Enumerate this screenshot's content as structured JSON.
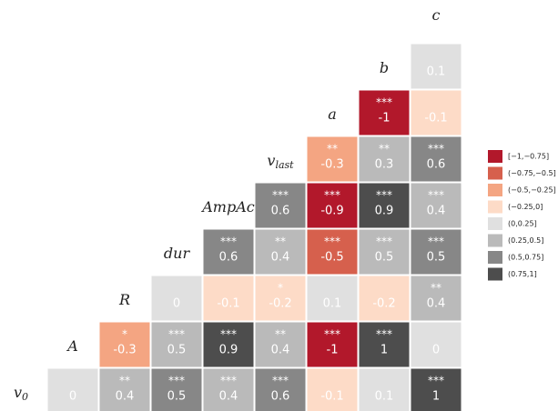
{
  "chart_data": {
    "type": "heatmap",
    "variables": [
      {
        "text": "v",
        "sub": "0"
      },
      {
        "text": "A"
      },
      {
        "text": "R"
      },
      {
        "text": "dur"
      },
      {
        "text": "AmpAc"
      },
      {
        "text": "v",
        "sub": "last"
      },
      {
        "text": "a"
      },
      {
        "text": "b"
      },
      {
        "text": "c"
      }
    ],
    "rows": [
      {
        "values": [
          0,
          0.4,
          0.5,
          0.4,
          0.6,
          -0.1,
          0.1,
          1
        ],
        "stars": [
          null,
          "**",
          "***",
          "***",
          "***",
          null,
          null,
          "***"
        ],
        "colors": [
          "#e0e0e0",
          "#bababa",
          "#878787",
          "#bababa",
          "#878787",
          "#fddbc7",
          "#e0e0e0",
          "#4d4d4d"
        ]
      },
      {
        "values": [
          -0.3,
          0.5,
          0.9,
          0.4,
          -1,
          1,
          0
        ],
        "stars": [
          "*",
          "***",
          "***",
          "**",
          "***",
          "***",
          null
        ],
        "colors": [
          "#f4a582",
          "#bababa",
          "#4d4d4d",
          "#bababa",
          "#b2182b",
          "#4d4d4d",
          "#e0e0e0"
        ]
      },
      {
        "values": [
          0,
          -0.1,
          -0.2,
          0.1,
          -0.2,
          0.4
        ],
        "stars": [
          null,
          null,
          "*",
          null,
          null,
          "**"
        ],
        "colors": [
          "#e0e0e0",
          "#fddbc7",
          "#fddbc7",
          "#e0e0e0",
          "#fddbc7",
          "#bababa"
        ]
      },
      {
        "values": [
          0.6,
          0.4,
          -0.5,
          0.5,
          0.5
        ],
        "stars": [
          "***",
          "**",
          "***",
          "***",
          "***"
        ],
        "colors": [
          "#878787",
          "#bababa",
          "#d6604d",
          "#bababa",
          "#878787"
        ]
      },
      {
        "values": [
          0.6,
          -0.9,
          0.9,
          0.4
        ],
        "stars": [
          "***",
          "***",
          "***",
          "***"
        ],
        "colors": [
          "#878787",
          "#b2182b",
          "#4d4d4d",
          "#bababa"
        ]
      },
      {
        "values": [
          -0.3,
          0.3,
          0.6
        ],
        "stars": [
          "**",
          "**",
          "***"
        ],
        "colors": [
          "#f4a582",
          "#bababa",
          "#878787"
        ]
      },
      {
        "values": [
          -1,
          -0.1
        ],
        "stars": [
          "***",
          null
        ],
        "colors": [
          "#b2182b",
          "#fddbc7"
        ]
      },
      {
        "values": [
          0.1
        ],
        "stars": [
          null
        ],
        "colors": [
          "#e0e0e0"
        ]
      }
    ],
    "legend": [
      {
        "label": "[−1,−0.75]",
        "color": "#b2182b"
      },
      {
        "label": "(−0.75,−0.5]",
        "color": "#d6604d"
      },
      {
        "label": "(−0.5,−0.25]",
        "color": "#f4a582"
      },
      {
        "label": "(−0.25,0]",
        "color": "#fddbc7"
      },
      {
        "label": "(0,0.25]",
        "color": "#e0e0e0"
      },
      {
        "label": "(0.25,0.5]",
        "color": "#bababa"
      },
      {
        "label": "(0.5,0.75]",
        "color": "#878787"
      },
      {
        "label": "(0.75,1]",
        "color": "#4d4d4d"
      }
    ]
  }
}
